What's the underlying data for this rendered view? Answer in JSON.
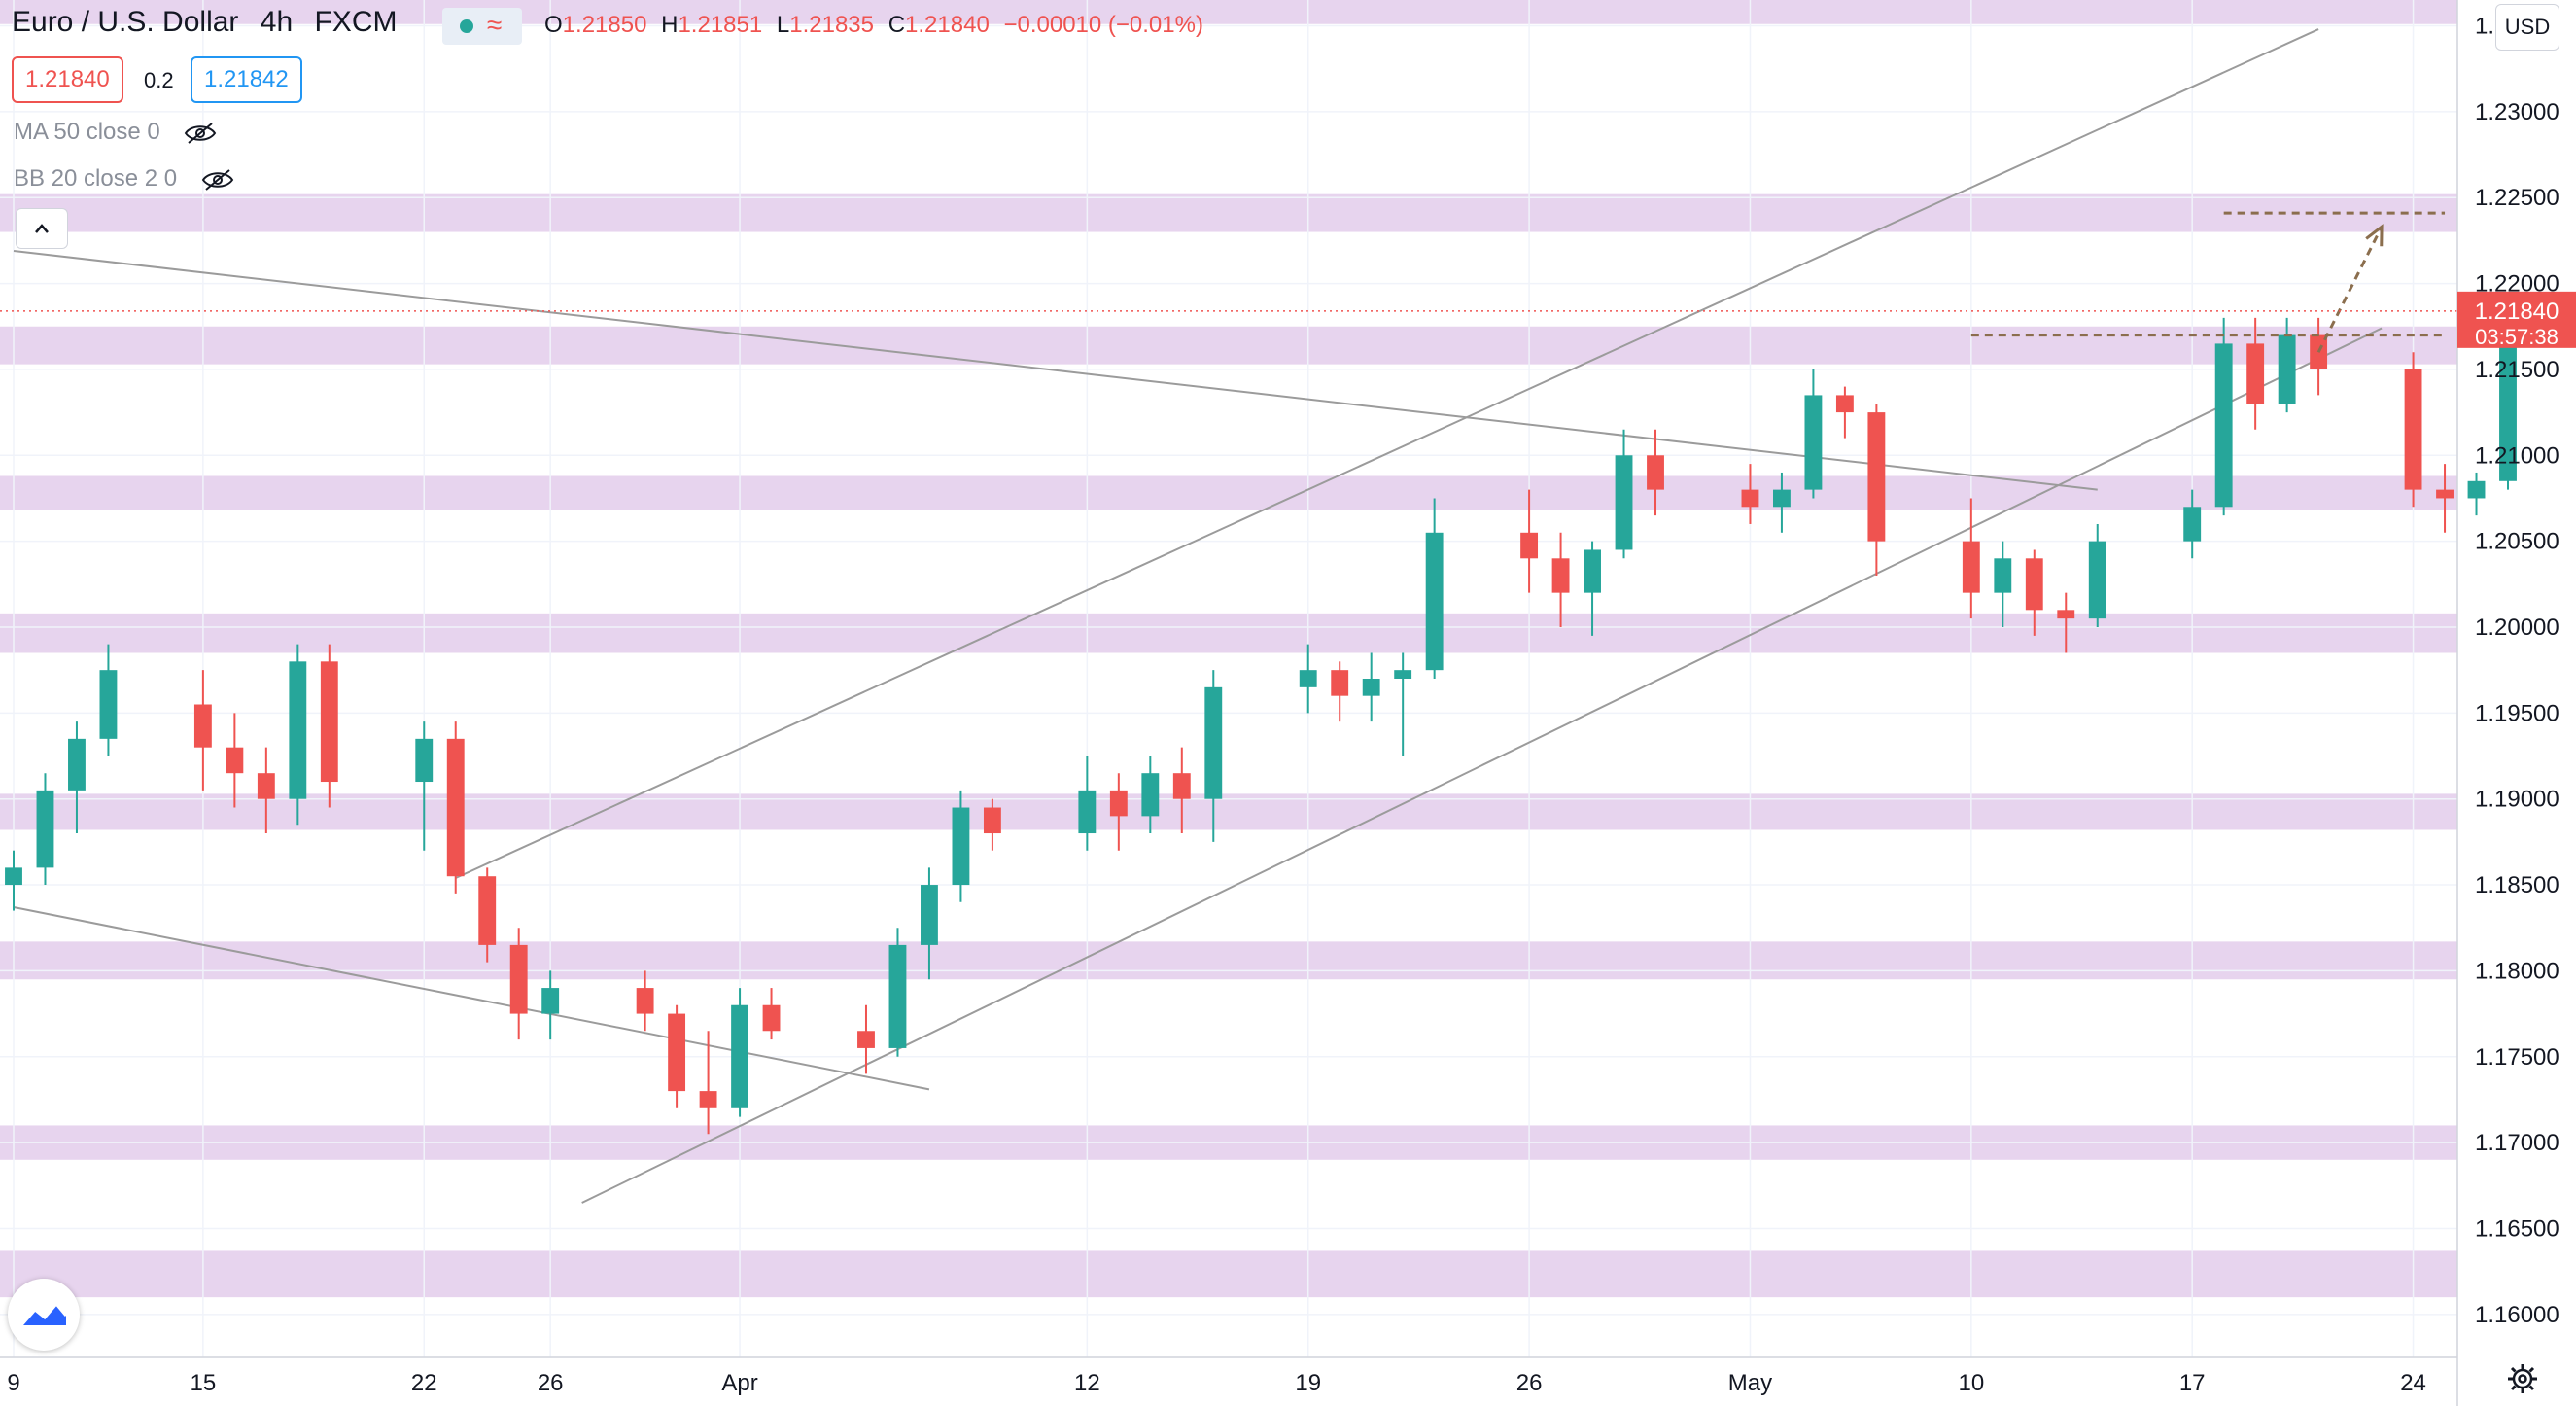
{
  "header": {
    "symbol": "Euro / U.S. Dollar",
    "interval": "4h",
    "exchange": "FXCM",
    "open_label": "O",
    "open": "1.21850",
    "high_label": "H",
    "high": "1.21851",
    "low_label": "L",
    "low": "1.21835",
    "close_label": "C",
    "close": "1.21840",
    "change": "−0.00010 (−0.01%)"
  },
  "trade": {
    "sell_price": "1.21840",
    "spread": "0.2",
    "buy_price": "1.21842"
  },
  "indicators": [
    {
      "label": "MA 50 close 0"
    },
    {
      "label": "BB 20 close 2 0"
    }
  ],
  "price_axis": {
    "currency": "USD",
    "ticks": [
      "1.23500",
      "1.23000",
      "1.22500",
      "1.22000",
      "1.21500",
      "1.21000",
      "1.20500",
      "1.20000",
      "1.19500",
      "1.19000",
      "1.18500",
      "1.18000",
      "1.17500",
      "1.17000",
      "1.16500",
      "1.16000"
    ],
    "last_price": "1.21840",
    "countdown": "03:57:38"
  },
  "time_axis": {
    "ticks": [
      "9",
      "15",
      "22",
      "26",
      "Apr",
      "12",
      "19",
      "26",
      "May",
      "10",
      "17",
      "24"
    ]
  },
  "colors": {
    "up": "#26a69a",
    "down": "#ef5350",
    "zone": "#e7d4ee",
    "trendline": "#9b9b9b",
    "annotation": "#8b6e4e"
  },
  "icons": [
    "eye-hidden-icon",
    "chevron-up-icon",
    "tradingview-logo-icon",
    "gear-icon"
  ],
  "chart_data": {
    "type": "candlestick",
    "ylim": [
      1.1575,
      1.2365
    ],
    "y_ticks": [
      1.235,
      1.23,
      1.225,
      1.22,
      1.215,
      1.21,
      1.205,
      1.2,
      1.195,
      1.19,
      1.185,
      1.18,
      1.175,
      1.17,
      1.165,
      1.16
    ],
    "x_start": "2021-03-09",
    "x_end": "2021-05-27",
    "x_ticks": [
      {
        "label": "9",
        "date": "2021-03-09"
      },
      {
        "label": "15",
        "date": "2021-03-15"
      },
      {
        "label": "22",
        "date": "2021-03-22"
      },
      {
        "label": "26",
        "date": "2021-03-26"
      },
      {
        "label": "Apr",
        "date": "2021-04-01"
      },
      {
        "label": "12",
        "date": "2021-04-12"
      },
      {
        "label": "19",
        "date": "2021-04-19"
      },
      {
        "label": "26",
        "date": "2021-04-26"
      },
      {
        "label": "May",
        "date": "2021-05-03"
      },
      {
        "label": "10",
        "date": "2021-05-10"
      },
      {
        "label": "17",
        "date": "2021-05-17"
      },
      {
        "label": "24",
        "date": "2021-05-24"
      }
    ],
    "candles": [
      {
        "date": "2021-03-09",
        "open": 1.185,
        "high": 1.187,
        "low": 1.1835,
        "close": 1.186
      },
      {
        "date": "2021-03-10",
        "open": 1.186,
        "high": 1.1915,
        "low": 1.185,
        "close": 1.1905
      },
      {
        "date": "2021-03-11",
        "open": 1.1905,
        "high": 1.1945,
        "low": 1.188,
        "close": 1.1935
      },
      {
        "date": "2021-03-12",
        "open": 1.1935,
        "high": 1.199,
        "low": 1.1925,
        "close": 1.1975
      },
      {
        "date": "2021-03-15",
        "open": 1.1955,
        "high": 1.1975,
        "low": 1.1905,
        "close": 1.193
      },
      {
        "date": "2021-03-16",
        "open": 1.193,
        "high": 1.195,
        "low": 1.1895,
        "close": 1.1915
      },
      {
        "date": "2021-03-17",
        "open": 1.1915,
        "high": 1.193,
        "low": 1.188,
        "close": 1.19
      },
      {
        "date": "2021-03-18",
        "open": 1.19,
        "high": 1.199,
        "low": 1.1885,
        "close": 1.198
      },
      {
        "date": "2021-03-19",
        "open": 1.198,
        "high": 1.199,
        "low": 1.1895,
        "close": 1.191
      },
      {
        "date": "2021-03-22",
        "open": 1.191,
        "high": 1.1945,
        "low": 1.187,
        "close": 1.1935
      },
      {
        "date": "2021-03-23",
        "open": 1.1935,
        "high": 1.1945,
        "low": 1.1845,
        "close": 1.1855
      },
      {
        "date": "2021-03-24",
        "open": 1.1855,
        "high": 1.186,
        "low": 1.1805,
        "close": 1.1815
      },
      {
        "date": "2021-03-25",
        "open": 1.1815,
        "high": 1.1825,
        "low": 1.176,
        "close": 1.1775
      },
      {
        "date": "2021-03-26",
        "open": 1.1775,
        "high": 1.18,
        "low": 1.176,
        "close": 1.179
      },
      {
        "date": "2021-03-29",
        "open": 1.179,
        "high": 1.18,
        "low": 1.1765,
        "close": 1.1775
      },
      {
        "date": "2021-03-30",
        "open": 1.1775,
        "high": 1.178,
        "low": 1.172,
        "close": 1.173
      },
      {
        "date": "2021-03-31",
        "open": 1.173,
        "high": 1.1765,
        "low": 1.1705,
        "close": 1.172
      },
      {
        "date": "2021-04-01",
        "open": 1.172,
        "high": 1.179,
        "low": 1.1715,
        "close": 1.178
      },
      {
        "date": "2021-04-02",
        "open": 1.178,
        "high": 1.179,
        "low": 1.176,
        "close": 1.1765
      },
      {
        "date": "2021-04-05",
        "open": 1.1765,
        "high": 1.178,
        "low": 1.174,
        "close": 1.1755
      },
      {
        "date": "2021-04-06",
        "open": 1.1755,
        "high": 1.1825,
        "low": 1.175,
        "close": 1.1815
      },
      {
        "date": "2021-04-07",
        "open": 1.1815,
        "high": 1.186,
        "low": 1.1795,
        "close": 1.185
      },
      {
        "date": "2021-04-08",
        "open": 1.185,
        "high": 1.1905,
        "low": 1.184,
        "close": 1.1895
      },
      {
        "date": "2021-04-09",
        "open": 1.1895,
        "high": 1.19,
        "low": 1.187,
        "close": 1.188
      },
      {
        "date": "2021-04-12",
        "open": 1.188,
        "high": 1.1925,
        "low": 1.187,
        "close": 1.1905
      },
      {
        "date": "2021-04-13",
        "open": 1.1905,
        "high": 1.1915,
        "low": 1.187,
        "close": 1.189
      },
      {
        "date": "2021-04-14",
        "open": 1.189,
        "high": 1.1925,
        "low": 1.188,
        "close": 1.1915
      },
      {
        "date": "2021-04-15",
        "open": 1.1915,
        "high": 1.193,
        "low": 1.188,
        "close": 1.19
      },
      {
        "date": "2021-04-16",
        "open": 1.19,
        "high": 1.1975,
        "low": 1.1875,
        "close": 1.1965
      },
      {
        "date": "2021-04-19",
        "open": 1.1965,
        "high": 1.199,
        "low": 1.195,
        "close": 1.1975
      },
      {
        "date": "2021-04-20",
        "open": 1.1975,
        "high": 1.198,
        "low": 1.1945,
        "close": 1.196
      },
      {
        "date": "2021-04-21",
        "open": 1.196,
        "high": 1.1985,
        "low": 1.1945,
        "close": 1.197
      },
      {
        "date": "2021-04-22",
        "open": 1.197,
        "high": 1.1985,
        "low": 1.1925,
        "close": 1.1975
      },
      {
        "date": "2021-04-23",
        "open": 1.1975,
        "high": 1.2075,
        "low": 1.197,
        "close": 1.2055
      },
      {
        "date": "2021-04-26",
        "open": 1.2055,
        "high": 1.208,
        "low": 1.202,
        "close": 1.204
      },
      {
        "date": "2021-04-27",
        "open": 1.204,
        "high": 1.2055,
        "low": 1.2,
        "close": 1.202
      },
      {
        "date": "2021-04-28",
        "open": 1.202,
        "high": 1.205,
        "low": 1.1995,
        "close": 1.2045
      },
      {
        "date": "2021-04-29",
        "open": 1.2045,
        "high": 1.2115,
        "low": 1.204,
        "close": 1.21
      },
      {
        "date": "2021-04-30",
        "open": 1.21,
        "high": 1.2115,
        "low": 1.2065,
        "close": 1.208
      },
      {
        "date": "2021-05-03",
        "open": 1.208,
        "high": 1.2095,
        "low": 1.206,
        "close": 1.207
      },
      {
        "date": "2021-05-04",
        "open": 1.207,
        "high": 1.209,
        "low": 1.2055,
        "close": 1.208
      },
      {
        "date": "2021-05-05",
        "open": 1.208,
        "high": 1.215,
        "low": 1.2075,
        "close": 1.2135
      },
      {
        "date": "2021-05-06",
        "open": 1.2135,
        "high": 1.214,
        "low": 1.211,
        "close": 1.2125
      },
      {
        "date": "2021-05-07",
        "open": 1.2125,
        "high": 1.213,
        "low": 1.203,
        "close": 1.205
      },
      {
        "date": "2021-05-10",
        "open": 1.205,
        "high": 1.2075,
        "low": 1.2005,
        "close": 1.202
      },
      {
        "date": "2021-05-11",
        "open": 1.202,
        "high": 1.205,
        "low": 1.2,
        "close": 1.204
      },
      {
        "date": "2021-05-12",
        "open": 1.204,
        "high": 1.2045,
        "low": 1.1995,
        "close": 1.201
      },
      {
        "date": "2021-05-13",
        "open": 1.201,
        "high": 1.202,
        "low": 1.1985,
        "close": 1.2005
      },
      {
        "date": "2021-05-14",
        "open": 1.2005,
        "high": 1.206,
        "low": 1.2,
        "close": 1.205
      },
      {
        "date": "2021-05-17",
        "open": 1.205,
        "high": 1.208,
        "low": 1.204,
        "close": 1.207
      },
      {
        "date": "2021-05-18",
        "open": 1.207,
        "high": 1.218,
        "low": 1.2065,
        "close": 1.2165
      },
      {
        "date": "2021-05-19",
        "open": 1.2165,
        "high": 1.218,
        "low": 1.2115,
        "close": 1.213
      },
      {
        "date": "2021-05-20",
        "open": 1.213,
        "high": 1.218,
        "low": 1.2125,
        "close": 1.217
      },
      {
        "date": "2021-05-21",
        "open": 1.217,
        "high": 1.218,
        "low": 1.2135,
        "close": 1.215
      },
      {
        "date": "2021-05-24",
        "open": 1.215,
        "high": 1.216,
        "low": 1.207,
        "close": 1.208
      },
      {
        "date": "2021-05-25",
        "open": 1.208,
        "high": 1.2095,
        "low": 1.2055,
        "close": 1.2075
      },
      {
        "date": "2021-05-26",
        "open": 1.2075,
        "high": 1.209,
        "low": 1.2065,
        "close": 1.2085
      },
      {
        "date": "2021-05-27",
        "open": 1.2085,
        "high": 1.218,
        "low": 1.208,
        "close": 1.217
      }
    ],
    "zones": [
      {
        "from": 1.2351,
        "to": 1.2372
      },
      {
        "from": 1.223,
        "to": 1.2252
      },
      {
        "from": 1.2153,
        "to": 1.2175
      },
      {
        "from": 1.2068,
        "to": 1.2088
      },
      {
        "from": 1.1985,
        "to": 1.2008
      },
      {
        "from": 1.1882,
        "to": 1.1903
      },
      {
        "from": 1.1795,
        "to": 1.1817
      },
      {
        "from": 1.169,
        "to": 1.171
      },
      {
        "from": 1.161,
        "to": 1.1637
      }
    ],
    "trendlines": [
      {
        "from": {
          "date": "2021-03-09",
          "price": 1.2219
        },
        "to": {
          "date": "2021-05-14",
          "price": 1.208
        }
      },
      {
        "from": {
          "date": "2021-03-09",
          "price": 1.1837
        },
        "to": {
          "date": "2021-04-07",
          "price": 1.1731
        }
      },
      {
        "from": {
          "date": "2021-03-23",
          "price": 1.1854
        },
        "to": {
          "date": "2021-05-21",
          "price": 1.2348
        }
      },
      {
        "from": {
          "date": "2021-03-27",
          "price": 1.1665
        },
        "to": {
          "date": "2021-05-23",
          "price": 1.2174
        }
      }
    ],
    "resistance_level": 1.2241,
    "support_level": 1.217,
    "projection": {
      "from": {
        "date": "2021-05-21",
        "price": 1.216
      },
      "to": {
        "date": "2021-05-23",
        "price": 1.2233
      }
    },
    "last_price": 1.2184
  }
}
